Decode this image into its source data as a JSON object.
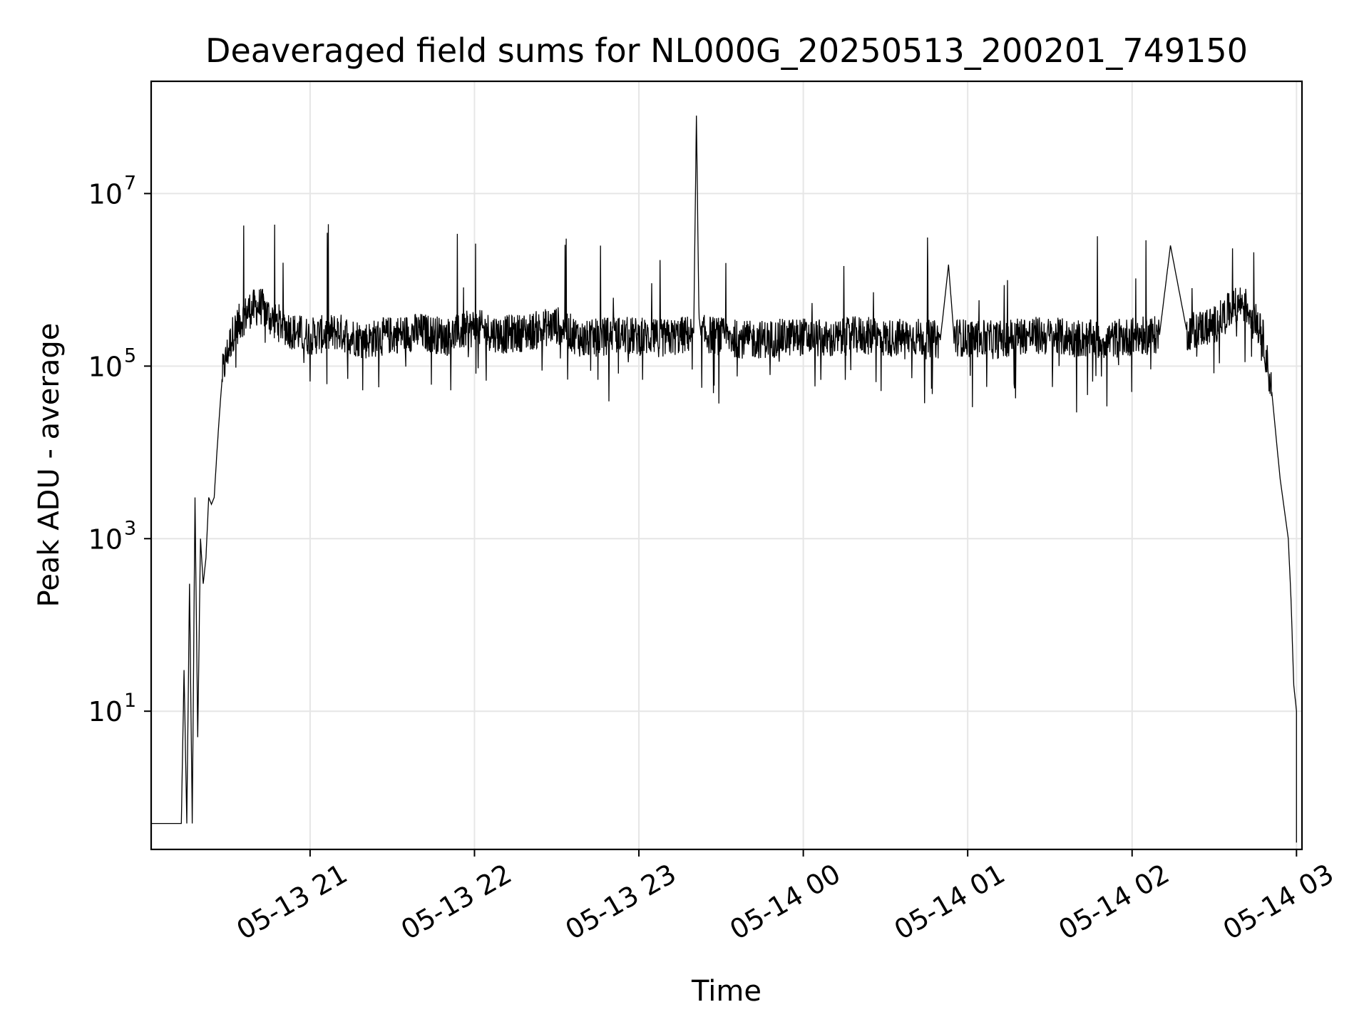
{
  "chart_data": {
    "type": "line",
    "title": "Deaveraged field sums for NL000G_20250513_200201_749150",
    "xlabel": "Time",
    "ylabel": "Peak ADU - average",
    "yscale": "log",
    "grid": true,
    "line_color": "#000000",
    "grid_color": "#e6e6e6",
    "x_ticks": [
      "05-13 21",
      "05-13 22",
      "05-13 23",
      "05-14 00",
      "05-14 01",
      "05-14 02",
      "05-14 03"
    ],
    "y_ticks": [
      {
        "base": "10",
        "exp": "1",
        "value": 10
      },
      {
        "base": "10",
        "exp": "3",
        "value": 1000
      },
      {
        "base": "10",
        "exp": "5",
        "value": 100000
      },
      {
        "base": "10",
        "exp": "7",
        "value": 10000000
      }
    ],
    "xlim": [
      "2025-05-13 20:02",
      "2025-05-14 03:02"
    ],
    "ylim": [
      0.25,
      200000000
    ],
    "series": [
      {
        "x": [
          "2025-05-13 20:02",
          "2025-05-13 20:08",
          "2025-05-13 20:13",
          "2025-05-13 20:14",
          "2025-05-13 20:15",
          "2025-05-13 20:16",
          "2025-05-13 20:17",
          "2025-05-13 20:18",
          "2025-05-13 20:19",
          "2025-05-13 20:20",
          "2025-05-13 20:21",
          "2025-05-13 20:22",
          "2025-05-13 20:23",
          "2025-05-13 20:24",
          "2025-05-13 20:25",
          "2025-05-13 20:26",
          "2025-05-13 20:27",
          "2025-05-13 20:28",
          "2025-05-13 20:30",
          "2025-05-13 20:32",
          "2025-05-13 20:35",
          "2025-05-13 20:38",
          "2025-05-13 20:42",
          "2025-05-13 20:46",
          "2025-05-13 20:50",
          "2025-05-13 20:54",
          "2025-05-13 21:00",
          "2025-05-13 21:10",
          "2025-05-13 21:20",
          "2025-05-13 21:30",
          "2025-05-13 21:40",
          "2025-05-13 21:50",
          "2025-05-13 22:00",
          "2025-05-13 22:10",
          "2025-05-13 22:20",
          "2025-05-13 22:30",
          "2025-05-13 22:40",
          "2025-05-13 22:50",
          "2025-05-13 23:00",
          "2025-05-13 23:10",
          "2025-05-13 23:20",
          "2025-05-13 23:21",
          "2025-05-13 23:22",
          "2025-05-13 23:30",
          "2025-05-13 23:40",
          "2025-05-13 23:50",
          "2025-05-14 00:00",
          "2025-05-14 00:10",
          "2025-05-14 00:20",
          "2025-05-14 00:30",
          "2025-05-14 00:40",
          "2025-05-14 00:50",
          "2025-05-14 00:53",
          "2025-05-14 00:55",
          "2025-05-14 01:00",
          "2025-05-14 01:10",
          "2025-05-14 01:20",
          "2025-05-14 01:30",
          "2025-05-14 01:40",
          "2025-05-14 01:50",
          "2025-05-14 02:00",
          "2025-05-14 02:10",
          "2025-05-14 02:14",
          "2025-05-14 02:20",
          "2025-05-14 02:30",
          "2025-05-14 02:36",
          "2025-05-14 02:40",
          "2025-05-14 02:44",
          "2025-05-14 02:48",
          "2025-05-14 02:51",
          "2025-05-14 02:54",
          "2025-05-14 02:57",
          "2025-05-14 02:58",
          "2025-05-14 02:59",
          "2025-05-14 03:00",
          "2025-05-14 03:00"
        ],
        "values": [
          0.5,
          0.5,
          0.5,
          30,
          0.5,
          300,
          0.5,
          3000,
          5,
          1000,
          300,
          600,
          3000,
          2500,
          3000,
          10000,
          30000,
          80000,
          150000,
          250000,
          350000,
          450000,
          500000,
          350000,
          300000,
          250000,
          220000,
          250000,
          200000,
          230000,
          250000,
          220000,
          280000,
          230000,
          250000,
          300000,
          200000,
          230000,
          220000,
          210000,
          240000,
          80000000,
          240000,
          220000,
          200000,
          210000,
          220000,
          200000,
          230000,
          210000,
          220000,
          200000,
          1500000,
          220000,
          210000,
          200000,
          230000,
          220000,
          210000,
          200000,
          220000,
          230000,
          2500000,
          250000,
          300000,
          450000,
          550000,
          400000,
          200000,
          50000,
          5000,
          1000,
          200,
          20,
          10,
          0.3
        ],
        "noise": true
      }
    ]
  }
}
